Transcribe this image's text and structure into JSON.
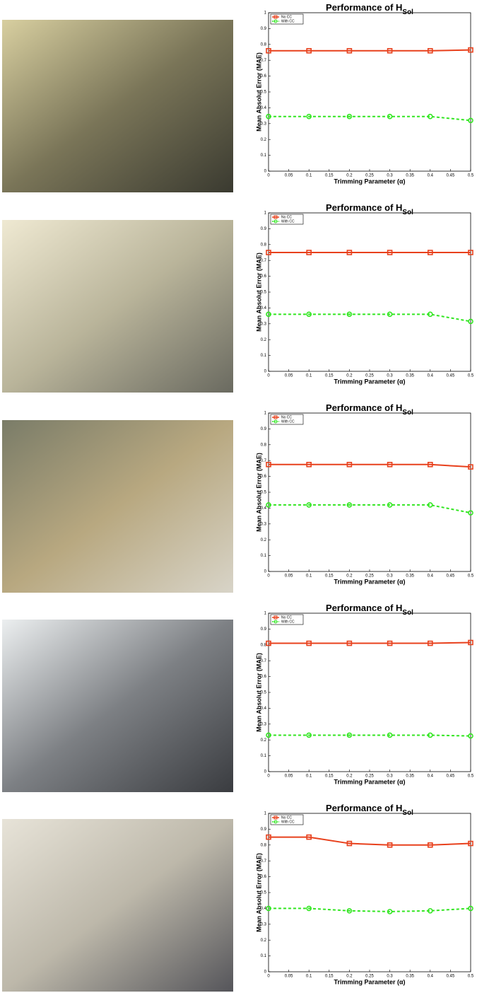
{
  "chart_data": [
    {
      "type": "line",
      "title": "Performance of H",
      "title_subscript": "Sol",
      "xlabel": "Trimming Parameter (α)",
      "ylabel": "Mean Absolut Error (MAE)",
      "x": [
        0,
        0.1,
        0.2,
        0.3,
        0.4,
        0.5
      ],
      "xlim": [
        0,
        0.5
      ],
      "xticks": [
        0,
        0.05,
        0.1,
        0.15,
        0.2,
        0.25,
        0.3,
        0.35,
        0.4,
        0.45,
        0.5
      ],
      "ylim": [
        0,
        1
      ],
      "yticks": [
        0,
        0.1,
        0.2,
        0.3,
        0.4,
        0.5,
        0.6,
        0.7,
        0.8,
        0.9,
        1
      ],
      "legend": "upper left",
      "series": [
        {
          "name": "No CC",
          "color": "#e8401c",
          "marker": "square",
          "dash": false,
          "values": [
            0.76,
            0.76,
            0.76,
            0.76,
            0.76,
            0.765
          ]
        },
        {
          "name": "With CC",
          "color": "#33e622",
          "marker": "circle",
          "dash": true,
          "values": [
            0.345,
            0.345,
            0.345,
            0.345,
            0.345,
            0.32
          ]
        }
      ]
    },
    {
      "type": "line",
      "title": "Performance of H",
      "title_subscript": "Sol",
      "xlabel": "Trimming Parameter (α)",
      "ylabel": "Mean Absolut Error (MAE)",
      "x": [
        0,
        0.1,
        0.2,
        0.3,
        0.4,
        0.5
      ],
      "xlim": [
        0,
        0.5
      ],
      "xticks": [
        0,
        0.05,
        0.1,
        0.15,
        0.2,
        0.25,
        0.3,
        0.35,
        0.4,
        0.45,
        0.5
      ],
      "ylim": [
        0,
        1
      ],
      "yticks": [
        0,
        0.1,
        0.2,
        0.3,
        0.4,
        0.5,
        0.6,
        0.7,
        0.8,
        0.9,
        1
      ],
      "legend": "upper left",
      "series": [
        {
          "name": "No CC",
          "color": "#e8401c",
          "marker": "square",
          "dash": false,
          "values": [
            0.75,
            0.75,
            0.75,
            0.75,
            0.75,
            0.75
          ]
        },
        {
          "name": "With CC",
          "color": "#33e622",
          "marker": "circle",
          "dash": true,
          "values": [
            0.36,
            0.36,
            0.36,
            0.36,
            0.36,
            0.315
          ]
        }
      ]
    },
    {
      "type": "line",
      "title": "Performance of H",
      "title_subscript": "Sol",
      "xlabel": "Trimming Parameter (α)",
      "ylabel": "Mean Absolut Error (MAE)",
      "x": [
        0,
        0.1,
        0.2,
        0.3,
        0.4,
        0.5
      ],
      "xlim": [
        0,
        0.5
      ],
      "xticks": [
        0,
        0.05,
        0.1,
        0.15,
        0.2,
        0.25,
        0.3,
        0.35,
        0.4,
        0.45,
        0.5
      ],
      "ylim": [
        0,
        1
      ],
      "yticks": [
        0,
        0.1,
        0.2,
        0.3,
        0.4,
        0.5,
        0.6,
        0.7,
        0.8,
        0.9,
        1
      ],
      "legend": "upper left",
      "series": [
        {
          "name": "No CC",
          "color": "#e8401c",
          "marker": "square",
          "dash": false,
          "values": [
            0.675,
            0.675,
            0.675,
            0.675,
            0.675,
            0.66
          ]
        },
        {
          "name": "With CC",
          "color": "#33e622",
          "marker": "circle",
          "dash": true,
          "values": [
            0.42,
            0.42,
            0.42,
            0.42,
            0.42,
            0.37
          ]
        }
      ]
    },
    {
      "type": "line",
      "title": "Performance of H",
      "title_subscript": "Sol",
      "xlabel": "Trimming Parameter (α)",
      "ylabel": "Mean Absolut Error (MAE)",
      "x": [
        0,
        0.1,
        0.2,
        0.3,
        0.4,
        0.5
      ],
      "xlim": [
        0,
        0.5
      ],
      "xticks": [
        0,
        0.05,
        0.1,
        0.15,
        0.2,
        0.25,
        0.3,
        0.35,
        0.4,
        0.45,
        0.5
      ],
      "ylim": [
        0,
        1
      ],
      "yticks": [
        0,
        0.1,
        0.2,
        0.3,
        0.4,
        0.5,
        0.6,
        0.7,
        0.8,
        0.9,
        1
      ],
      "legend": "upper left",
      "series": [
        {
          "name": "No CC",
          "color": "#e8401c",
          "marker": "square",
          "dash": false,
          "values": [
            0.81,
            0.81,
            0.81,
            0.81,
            0.81,
            0.815
          ]
        },
        {
          "name": "With CC",
          "color": "#33e622",
          "marker": "circle",
          "dash": true,
          "values": [
            0.23,
            0.23,
            0.23,
            0.23,
            0.23,
            0.225
          ]
        }
      ]
    },
    {
      "type": "line",
      "title": "Performance of H",
      "title_subscript": "Sol",
      "xlabel": "Trimming Parameter (α)",
      "ylabel": "Mean Absolut Error (MAE)",
      "x": [
        0,
        0.1,
        0.2,
        0.3,
        0.4,
        0.5
      ],
      "xlim": [
        0,
        0.5
      ],
      "xticks": [
        0,
        0.05,
        0.1,
        0.15,
        0.2,
        0.25,
        0.3,
        0.35,
        0.4,
        0.45,
        0.5
      ],
      "ylim": [
        0,
        1
      ],
      "yticks": [
        0,
        0.1,
        0.2,
        0.3,
        0.4,
        0.5,
        0.6,
        0.7,
        0.8,
        0.9,
        1
      ],
      "legend": "upper left",
      "series": [
        {
          "name": "No CC",
          "color": "#e8401c",
          "marker": "square",
          "dash": false,
          "values": [
            0.85,
            0.85,
            0.81,
            0.8,
            0.8,
            0.81
          ]
        },
        {
          "name": "With CC",
          "color": "#33e622",
          "marker": "circle",
          "dash": true,
          "values": [
            0.4,
            0.4,
            0.385,
            0.38,
            0.385,
            0.4
          ]
        }
      ]
    }
  ]
}
